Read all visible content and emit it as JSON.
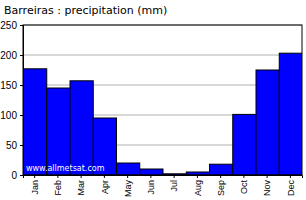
{
  "chart_data": {
    "type": "bar",
    "title": "Barreiras : precipitation (mm)",
    "categories": [
      "Jan",
      "Feb",
      "Mar",
      "Apr",
      "May",
      "Jun",
      "Jul",
      "Aug",
      "Sep",
      "Oct",
      "Nov",
      "Dec"
    ],
    "values": [
      177,
      145,
      157,
      95,
      20,
      10,
      2,
      5,
      18,
      101,
      175,
      203
    ],
    "color": "#0000ff",
    "ylim": [
      0,
      250
    ],
    "yticks": [
      0,
      50,
      100,
      150,
      200,
      250
    ],
    "grid": true,
    "annotations": [
      "www.allmetsat.com"
    ]
  }
}
